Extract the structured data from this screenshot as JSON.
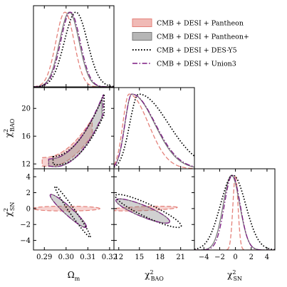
{
  "chart_data": {
    "type": "corner",
    "parameters": [
      {
        "name": "Omega_m",
        "label": "Ω",
        "label_sub": "m",
        "range": [
          0.285,
          0.322
        ],
        "ticks": [
          0.29,
          0.3,
          0.31,
          0.32
        ],
        "tick_labels": [
          "0.29",
          "0.30",
          "0.31",
          "0.32"
        ]
      },
      {
        "name": "chi2_BAO",
        "label": "χ",
        "label_sup": "2",
        "label_sub": "BAO",
        "range": [
          11.3,
          23.0
        ],
        "ticks": [
          12,
          15,
          18,
          21
        ],
        "tick_labels": [
          "12",
          "15",
          "18",
          "21"
        ]
      },
      {
        "name": "chi2_SN",
        "label": "χ",
        "label_sup": "2",
        "label_sub": "SN",
        "range": [
          -5.2,
          5.0
        ],
        "ticks": [
          -4,
          -2,
          0,
          2,
          4
        ],
        "tick_labels": [
          "−4",
          "−2",
          "0",
          "2",
          "4"
        ]
      }
    ],
    "panel_ticks": {
      "chi2_BAO_row": [
        12,
        16,
        20
      ],
      "chi2_BAO_row_labels": [
        "12",
        "16",
        "20"
      ],
      "chi2_SN_row": [
        -4,
        -2,
        0,
        2,
        4
      ],
      "chi2_SN_row_labels": [
        "−4",
        "−2",
        "0",
        "2",
        "4"
      ]
    },
    "series": [
      {
        "name": "CMB + DESI + Pantheon",
        "color": "#e4817a",
        "style": "dashed",
        "legend_symbol": "patch",
        "marginals": {
          "Omega_m": {
            "mean": 0.2995,
            "sigma": 0.0042
          },
          "chi2_BAO": {
            "mode": 13.5,
            "sl": 0.9,
            "sr": 2.8
          },
          "chi2_SN": {
            "mean": 0.0,
            "sigma": 0.32
          }
        }
      },
      {
        "name": "CMB + DESI + Pantheon+",
        "color": "#7a7a7a",
        "style": "solid",
        "legend_symbol": "patch",
        "marginals": {
          "Omega_m": {
            "mean": 0.3015,
            "sigma": 0.0045
          },
          "chi2_BAO": {
            "mode": 13.9,
            "sl": 1.0,
            "sr": 3.3
          },
          "chi2_SN": {
            "mean": -0.5,
            "sigma": 1.05
          }
        }
      },
      {
        "name": "CMB + DESI + DES-Y5",
        "color": "#000000",
        "style": "dotted",
        "legend_symbol": "line",
        "marginals": {
          "Omega_m": {
            "mean": 0.3045,
            "sigma": 0.0053
          },
          "chi2_BAO": {
            "mode": 14.9,
            "sl": 1.3,
            "sr": 4.3
          },
          "chi2_SN": {
            "mean": -0.3,
            "sigma": 1.6
          }
        }
      },
      {
        "name": "CMB + DESI + Union3",
        "color": "#7b1a82",
        "style": "dashdot",
        "legend_symbol": "line",
        "marginals": {
          "Omega_m": {
            "mean": 0.302,
            "sigma": 0.0045
          },
          "chi2_BAO": {
            "mode": 13.9,
            "sl": 1.0,
            "sr": 3.4
          },
          "chi2_SN": {
            "mean": -0.4,
            "sigma": 1.0
          }
        }
      }
    ],
    "legend_placement": "upper-right",
    "grid": false
  }
}
